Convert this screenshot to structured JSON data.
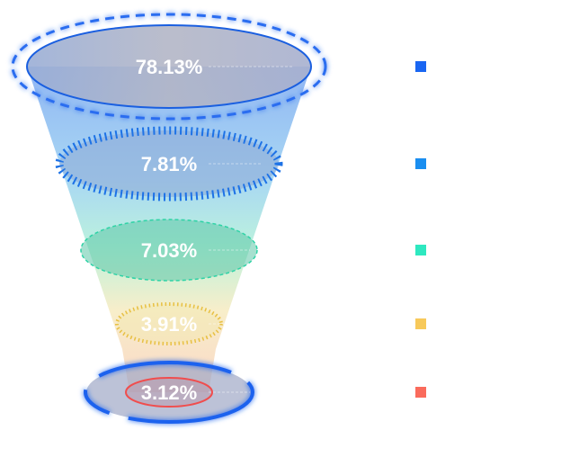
{
  "chart_data": {
    "type": "funnel",
    "title": "",
    "series": [
      {
        "name": "",
        "value": 78.13,
        "label": "78.13%",
        "color": "#1a66f2"
      },
      {
        "name": "",
        "value": 7.81,
        "label": "7.81%",
        "color": "#1a8ef0"
      },
      {
        "name": "",
        "value": 7.03,
        "label": "7.03%",
        "color": "#2ee8c0"
      },
      {
        "name": "",
        "value": 3.91,
        "label": "3.91%",
        "color": "#f7c95a"
      },
      {
        "name": "",
        "value": 3.12,
        "label": "3.12%",
        "color": "#fa6b5c"
      }
    ],
    "legend_position": "right"
  }
}
